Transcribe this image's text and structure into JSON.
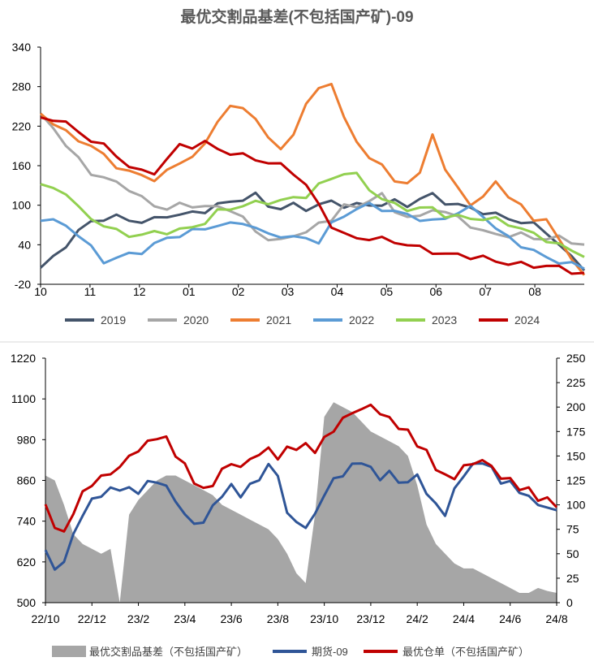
{
  "chart_data": [
    {
      "type": "line",
      "title": "最优交割品基差(不包括国产矿)-09",
      "ylim": [
        -20,
        340
      ],
      "yticks": [
        "340",
        "280",
        "220",
        "160",
        "100",
        "40",
        "-20"
      ],
      "months": [
        "10",
        "11",
        "12",
        "01",
        "02",
        "03",
        "04",
        "05",
        "06",
        "07",
        "08"
      ],
      "series": [
        {
          "name": "2019",
          "color": "#44546a",
          "values": [
            5,
            20,
            40,
            60,
            75,
            80,
            82,
            78,
            75,
            78,
            85,
            85,
            88,
            92,
            100,
            105,
            110,
            115,
            100,
            95,
            100,
            95,
            100,
            105,
            100,
            100,
            100,
            102,
            105,
            100,
            110,
            115,
            105,
            100,
            95,
            90,
            85,
            80,
            75,
            70,
            60,
            40,
            20,
            5
          ]
        },
        {
          "name": "2020",
          "color": "#a6a6a6",
          "values": [
            235,
            220,
            190,
            170,
            150,
            140,
            135,
            125,
            110,
            100,
            95,
            100,
            100,
            98,
            96,
            95,
            80,
            60,
            50,
            45,
            55,
            60,
            70,
            80,
            100,
            95,
            110,
            115,
            90,
            85,
            80,
            95,
            90,
            80,
            70,
            60,
            55,
            55,
            55,
            50,
            50,
            50,
            45,
            40
          ]
        },
        {
          "name": "2021",
          "color": "#ed7d31",
          "values": [
            240,
            225,
            210,
            200,
            190,
            175,
            160,
            150,
            145,
            140,
            150,
            165,
            175,
            190,
            230,
            250,
            245,
            235,
            200,
            185,
            210,
            250,
            280,
            285,
            230,
            200,
            170,
            160,
            140,
            130,
            150,
            210,
            150,
            130,
            100,
            110,
            140,
            110,
            100,
            80,
            75,
            50,
            20,
            -10
          ]
        },
        {
          "name": "2022",
          "color": "#5b9bd5",
          "values": [
            80,
            75,
            70,
            55,
            35,
            15,
            20,
            25,
            30,
            40,
            50,
            55,
            60,
            65,
            70,
            70,
            75,
            65,
            55,
            55,
            50,
            50,
            45,
            70,
            85,
            95,
            100,
            95,
            90,
            85,
            80,
            75,
            80,
            90,
            95,
            85,
            65,
            50,
            40,
            30,
            20,
            15,
            10,
            5
          ]
        },
        {
          "name": "2023",
          "color": "#92d050",
          "values": [
            130,
            125,
            120,
            95,
            80,
            70,
            60,
            55,
            55,
            58,
            60,
            62,
            66,
            75,
            90,
            95,
            100,
            103,
            105,
            107,
            110,
            115,
            130,
            140,
            150,
            145,
            125,
            110,
            100,
            95,
            95,
            95,
            85,
            82,
            80,
            80,
            78,
            72,
            65,
            55,
            48,
            40,
            30,
            25
          ]
        },
        {
          "name": "2024",
          "color": "#c00000",
          "values": [
            230,
            232,
            225,
            210,
            200,
            190,
            175,
            160,
            150,
            150,
            170,
            190,
            190,
            195,
            185,
            180,
            175,
            170,
            165,
            160,
            150,
            130,
            100,
            70,
            55,
            50,
            50,
            48,
            45,
            40,
            35,
            30,
            25,
            25,
            22,
            20,
            15,
            12,
            10,
            8,
            8,
            5,
            0,
            -5
          ]
        }
      ]
    },
    {
      "type": "bar",
      "title": "",
      "ylim_left": [
        500,
        1220
      ],
      "ylim_right": [
        0,
        250
      ],
      "yticks_left": [
        "1220",
        "1100",
        "980",
        "860",
        "740",
        "620",
        "500"
      ],
      "yticks_right": [
        "250",
        "225",
        "200",
        "175",
        "150",
        "125",
        "100",
        "75",
        "50",
        "25",
        "0"
      ],
      "xticks": [
        "22/10",
        "22/12",
        "23/2",
        "23/4",
        "23/6",
        "23/8",
        "23/10",
        "23/12",
        "24/2",
        "24/4",
        "24/6",
        "24/8"
      ],
      "basis": {
        "name": "最优交割品基差（不包括国产矿）",
        "color": "#a6a6a6",
        "values": [
          130,
          125,
          100,
          70,
          60,
          55,
          50,
          55,
          0,
          90,
          105,
          115,
          125,
          130,
          130,
          125,
          120,
          115,
          110,
          100,
          95,
          90,
          85,
          80,
          75,
          65,
          50,
          30,
          20,
          90,
          190,
          205,
          200,
          195,
          185,
          175,
          170,
          165,
          160,
          150,
          120,
          80,
          60,
          50,
          40,
          35,
          35,
          30,
          25,
          20,
          15,
          10,
          10,
          15,
          12,
          10
        ]
      },
      "futures": {
        "name": "期货-09",
        "color": "#2f5597",
        "values": [
          650,
          600,
          620,
          700,
          760,
          800,
          820,
          830,
          840,
          830,
          830,
          850,
          860,
          840,
          800,
          760,
          730,
          740,
          780,
          820,
          840,
          820,
          840,
          870,
          900,
          880,
          760,
          740,
          720,
          760,
          820,
          860,
          880,
          900,
          920,
          890,
          870,
          880,
          860,
          850,
          880,
          820,
          790,
          760,
          830,
          880,
          900,
          920,
          890,
          860,
          850,
          830,
          810,
          790,
          780,
          770
        ]
      },
      "warehouse": {
        "name": "最优仓单（不包括国产矿）",
        "color": "#c00000",
        "values": [
          780,
          730,
          700,
          770,
          820,
          850,
          870,
          880,
          900,
          930,
          950,
          970,
          990,
          980,
          940,
          900,
          860,
          830,
          850,
          890,
          910,
          900,
          920,
          940,
          950,
          930,
          950,
          960,
          960,
          950,
          980,
          1010,
          1040,
          1060,
          1070,
          1080,
          1060,
          1040,
          1020,
          1000,
          970,
          940,
          900,
          870,
          870,
          900,
          910,
          920,
          900,
          870,
          860,
          840,
          830,
          810,
          800,
          790
        ]
      }
    }
  ]
}
